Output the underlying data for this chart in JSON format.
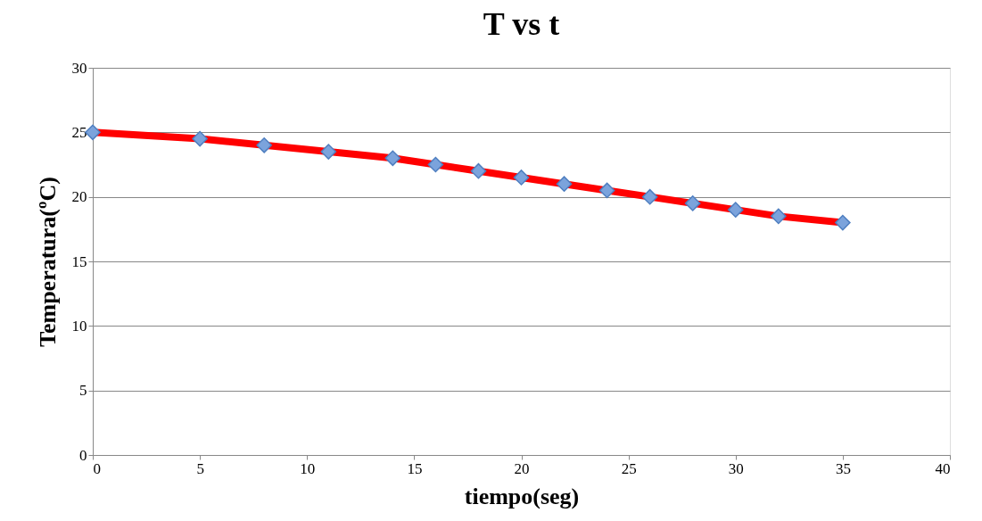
{
  "chart_data": {
    "type": "line",
    "title": "T vs t",
    "xlabel": "tiempo(seg)",
    "ylabel": "Temperatura(ºC)",
    "x": [
      0,
      5,
      8,
      11,
      14,
      16,
      18,
      20,
      22,
      24,
      26,
      28,
      30,
      32,
      35
    ],
    "series": [
      {
        "color": "#ff0000",
        "values": [
          25,
          24.5,
          24,
          23.5,
          23,
          22.5,
          22,
          21.5,
          21,
          20.5,
          20,
          19.5,
          19,
          18.5,
          18
        ]
      }
    ],
    "xlim": [
      0,
      40
    ],
    "xticks": [
      0,
      5,
      10,
      15,
      20,
      25,
      30,
      35,
      40
    ],
    "ylim": [
      0,
      30
    ],
    "yticks": [
      0,
      5,
      10,
      15,
      20,
      25,
      30
    ],
    "grid": "y",
    "marker": "diamond",
    "line_style": "solid"
  }
}
